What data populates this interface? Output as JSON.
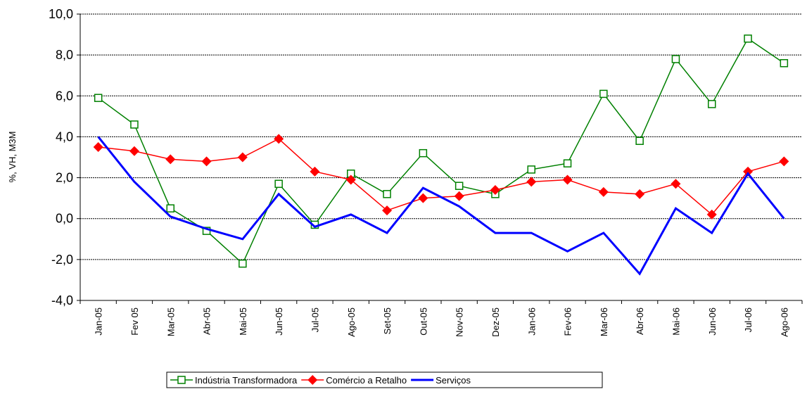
{
  "chart_data": {
    "type": "line",
    "y_label": "%, VH, M3M",
    "categories": [
      "Jan-05",
      "Fev 05",
      "Mar-05",
      "Abr-05",
      "Mai-05",
      "Jun-05",
      "Jul-05",
      "Ago-05",
      "Set-05",
      "Out-05",
      "Nov-05",
      "Dez-05",
      "Jan-06",
      "Fev-06",
      "Mar-06",
      "Abr-06",
      "Mai-06",
      "Jun-06",
      "Jul-06",
      "Ago-06"
    ],
    "series": [
      {
        "name": "Indústria Transformadora",
        "color": "#008000",
        "marker": "square",
        "values": [
          5.9,
          4.6,
          0.5,
          -0.6,
          -2.2,
          1.7,
          -0.3,
          2.2,
          1.2,
          3.2,
          1.6,
          1.2,
          2.4,
          2.7,
          6.1,
          3.8,
          7.8,
          5.6,
          8.8,
          7.6
        ]
      },
      {
        "name": "Comércio a Retalho",
        "color": "#ff0000",
        "marker": "diamond",
        "values": [
          3.5,
          3.3,
          2.9,
          2.8,
          3.0,
          3.9,
          2.3,
          1.9,
          0.4,
          1.0,
          1.1,
          1.4,
          1.8,
          1.9,
          1.3,
          1.2,
          1.7,
          0.2,
          2.3,
          2.8
        ]
      },
      {
        "name": "Serviços",
        "color": "#0000ff",
        "marker": "none",
        "values": [
          4.0,
          1.8,
          0.1,
          -0.5,
          -1.0,
          1.2,
          -0.4,
          0.2,
          -0.7,
          1.5,
          0.6,
          -0.7,
          -0.7,
          -1.6,
          -0.7,
          -2.7,
          0.5,
          -0.7,
          2.2,
          0.0
        ]
      }
    ],
    "ylim": [
      -4,
      10
    ],
    "yticks": [
      {
        "value": -4,
        "label": "-4,0"
      },
      {
        "value": -2,
        "label": "-2,0"
      },
      {
        "value": 0,
        "label": "0,0"
      },
      {
        "value": 2,
        "label": "2,0"
      },
      {
        "value": 4,
        "label": "4,0"
      },
      {
        "value": 6,
        "label": "6,0"
      },
      {
        "value": 8,
        "label": "8,0"
      },
      {
        "value": 10,
        "label": "10,0"
      }
    ],
    "grid": true,
    "legend": "bottom"
  }
}
